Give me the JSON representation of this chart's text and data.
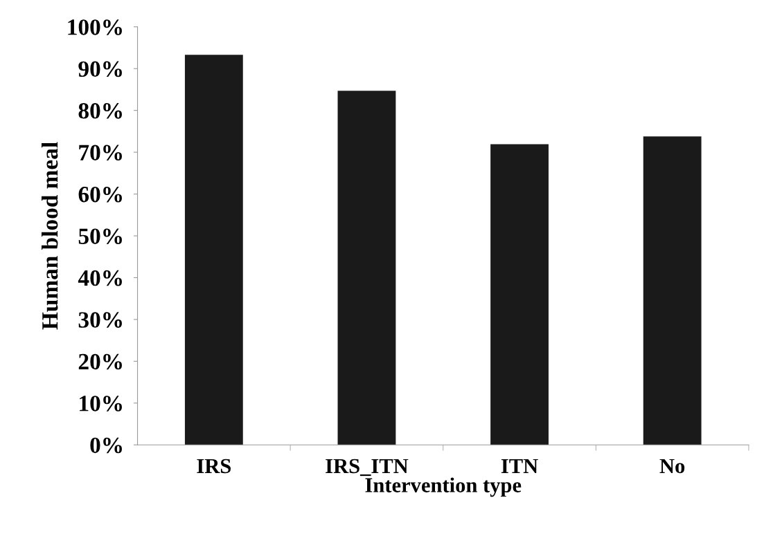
{
  "chart_data": {
    "type": "bar",
    "xlabel": "Intervention type",
    "ylabel": "Human blood meal",
    "categories": [
      "IRS",
      "IRS_ITN",
      "ITN",
      "No"
    ],
    "values": [
      93.3,
      84.7,
      71.9,
      73.8
    ],
    "color": "#1a1a1a",
    "ylim": [
      0,
      100
    ],
    "yticks": [
      {
        "value": 0,
        "label": "0%"
      },
      {
        "value": 10,
        "label": "10%"
      },
      {
        "value": 20,
        "label": "20%"
      },
      {
        "value": 30,
        "label": "30%"
      },
      {
        "value": 40,
        "label": "40%"
      },
      {
        "value": 50,
        "label": "50%"
      },
      {
        "value": 60,
        "label": "60%"
      },
      {
        "value": 70,
        "label": "70%"
      },
      {
        "value": 80,
        "label": "80%"
      },
      {
        "value": 90,
        "label": "90%"
      },
      {
        "value": 100,
        "label": "100%"
      }
    ],
    "grid": false,
    "legend": false
  }
}
